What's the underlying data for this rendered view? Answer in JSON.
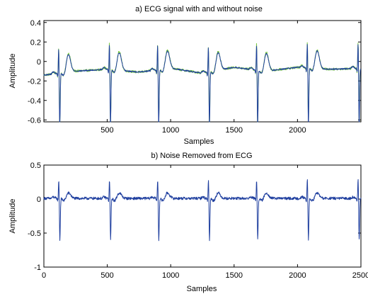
{
  "chart_data": [
    {
      "type": "line",
      "title": "a) ECG signal with and without noise",
      "xlabel": "Samples",
      "ylabel": "Amplitude",
      "xlim": [
        1,
        2500
      ],
      "ylim": [
        -0.62,
        0.42
      ],
      "xticks": [
        500,
        1000,
        1500,
        2000
      ],
      "xtick_labels": [
        "500",
        "1000",
        "1500",
        "2000"
      ],
      "yticks": [
        -0.6,
        -0.4,
        -0.2,
        0,
        0.2,
        0.4
      ],
      "ytick_labels": [
        "-0.6",
        "-0.4",
        "-0.2",
        "0",
        "0.2",
        "0.4"
      ],
      "grid": false,
      "beat_positions": [
        120,
        520,
        900,
        1300,
        1680,
        2080,
        2480
      ],
      "series": [
        {
          "color": "#7ac943",
          "r_peak": 0.3,
          "s_trough": -0.58,
          "t_peak": 0.19,
          "baseline_wander": [
            [
              1,
              -0.14
            ],
            [
              250,
              -0.1
            ],
            [
              500,
              -0.08
            ],
            [
              750,
              -0.11
            ],
            [
              1000,
              -0.07
            ],
            [
              1250,
              -0.12
            ],
            [
              1500,
              -0.06
            ],
            [
              1750,
              -0.1
            ],
            [
              2000,
              -0.06
            ],
            [
              2250,
              -0.08
            ],
            [
              2500,
              -0.07
            ]
          ],
          "noise_amplitude": 0.012
        },
        {
          "color": "#1f3f9f",
          "r_peak": 0.28,
          "s_trough": -0.6,
          "t_peak": 0.18,
          "baseline_wander": [
            [
              1,
              -0.14
            ],
            [
              250,
              -0.1
            ],
            [
              500,
              -0.08
            ],
            [
              750,
              -0.11
            ],
            [
              1000,
              -0.07
            ],
            [
              1250,
              -0.12
            ],
            [
              1500,
              -0.06
            ],
            [
              1750,
              -0.1
            ],
            [
              2000,
              -0.06
            ],
            [
              2250,
              -0.08
            ],
            [
              2500,
              -0.07
            ]
          ],
          "noise_amplitude": 0.006
        }
      ]
    },
    {
      "type": "line",
      "title": "b) Noise Removed from ECG",
      "xlabel": "Samples",
      "ylabel": "Amplitude",
      "xlim": [
        0,
        2500
      ],
      "ylim": [
        -1,
        0.5
      ],
      "xticks": [
        0,
        500,
        1000,
        1500,
        2000,
        2500
      ],
      "xtick_labels": [
        "0",
        "500",
        "1000",
        "1500",
        "2000",
        "2500"
      ],
      "yticks": [
        -1,
        -0.5,
        0,
        0.5
      ],
      "ytick_labels": [
        "-1",
        "-0.5",
        "0",
        "0.5"
      ],
      "grid": false,
      "beat_positions": [
        120,
        520,
        900,
        1300,
        1680,
        2080,
        2480
      ],
      "series": [
        {
          "color": "#1f3f9f",
          "r_peak": 0.3,
          "s_trough": -0.62,
          "t_peak": 0.08,
          "baseline_wander": [
            [
              0,
              0.01
            ],
            [
              2500,
              0.01
            ]
          ],
          "noise_amplitude": 0.02
        }
      ]
    }
  ]
}
